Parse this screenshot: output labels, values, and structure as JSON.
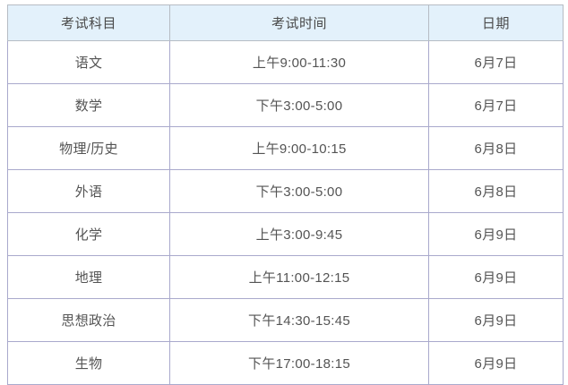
{
  "table": {
    "columns": [
      {
        "label": "考试科目"
      },
      {
        "label": "考试时间"
      },
      {
        "label": "日期"
      }
    ],
    "rows": [
      {
        "subject": "语文",
        "time": "上午9:00-11:30",
        "date": "6月7日"
      },
      {
        "subject": "数学",
        "time": "下午3:00-5:00",
        "date": "6月7日"
      },
      {
        "subject": "物理/历史",
        "time": "上午9:00-10:15",
        "date": "6月8日"
      },
      {
        "subject": "外语",
        "time": "下午3:00-5:00",
        "date": "6月8日"
      },
      {
        "subject": "化学",
        "time": "上午3:00-9:45",
        "date": "6月9日"
      },
      {
        "subject": "地理",
        "time": "上午11:00-12:15",
        "date": "6月9日"
      },
      {
        "subject": "思想政治",
        "time": "下午14:30-15:45",
        "date": "6月9日"
      },
      {
        "subject": "生物",
        "time": "下午17:00-18:15",
        "date": "6月9日"
      }
    ]
  },
  "chart_data": {
    "type": "table",
    "title": "",
    "columns": [
      "考试科目",
      "考试时间",
      "日期"
    ],
    "rows": [
      [
        "语文",
        "上午9:00-11:30",
        "6月7日"
      ],
      [
        "数学",
        "下午3:00-5:00",
        "6月7日"
      ],
      [
        "物理/历史",
        "上午9:00-10:15",
        "6月8日"
      ],
      [
        "外语",
        "下午3:00-5:00",
        "6月8日"
      ],
      [
        "化学",
        "上午3:00-9:45",
        "6月9日"
      ],
      [
        "地理",
        "上午11:00-12:15",
        "6月9日"
      ],
      [
        "思想政治",
        "下午14:30-15:45",
        "6月9日"
      ],
      [
        "生物",
        "下午17:00-18:15",
        "6月9日"
      ]
    ]
  },
  "colors": {
    "header_background": "#e3f1fb",
    "header_border": "#b6bcc4",
    "body_border": "#a9a9cc",
    "header_text": "#4a4a4a",
    "body_text": "#545454",
    "page_background": "#ffffff"
  }
}
